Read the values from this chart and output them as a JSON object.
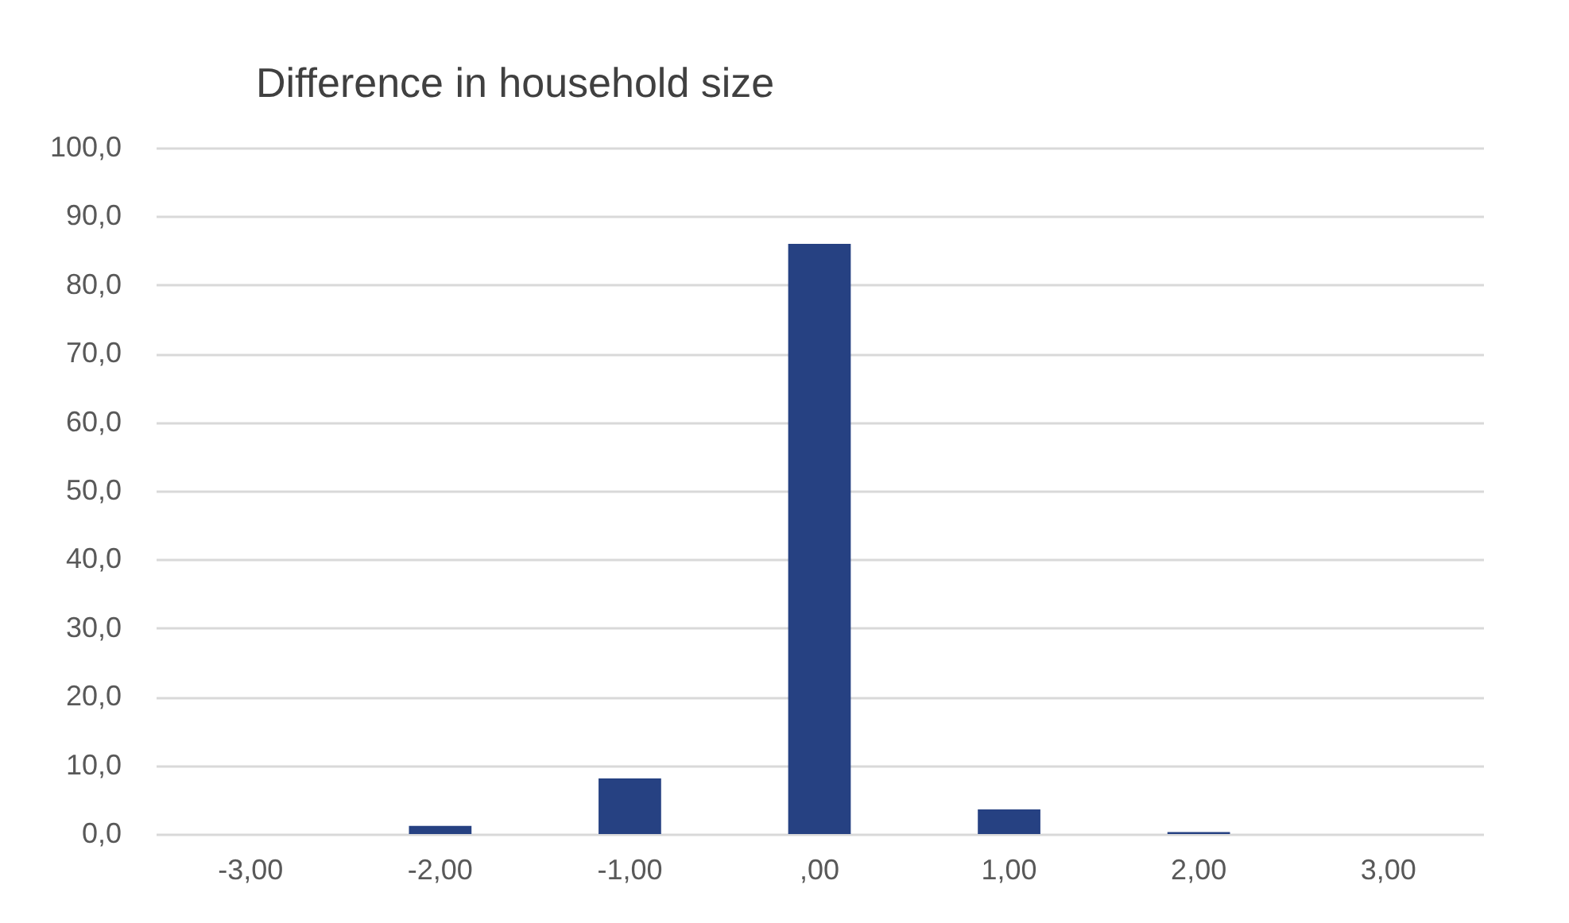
{
  "chart_data": {
    "type": "bar",
    "title": "Difference in household size",
    "categories": [
      "-3,00",
      "-2,00",
      "-1,00",
      ",00",
      "1,00",
      "2,00",
      "3,00"
    ],
    "values": [
      0,
      1.2,
      8.1,
      86.0,
      3.6,
      0.3,
      0
    ],
    "color": "#264182",
    "ylim": [
      0,
      100
    ],
    "yticks": [
      {
        "value": 0,
        "label": "0,0"
      },
      {
        "value": 10,
        "label": "10,0"
      },
      {
        "value": 20,
        "label": "20,0"
      },
      {
        "value": 30,
        "label": "30,0"
      },
      {
        "value": 40,
        "label": "40,0"
      },
      {
        "value": 50,
        "label": "50,0"
      },
      {
        "value": 60,
        "label": "60,0"
      },
      {
        "value": 70,
        "label": "70,0"
      },
      {
        "value": 80,
        "label": "80,0"
      },
      {
        "value": 90,
        "label": "90,0"
      },
      {
        "value": 100,
        "label": "100,0"
      }
    ],
    "grid": "y"
  }
}
